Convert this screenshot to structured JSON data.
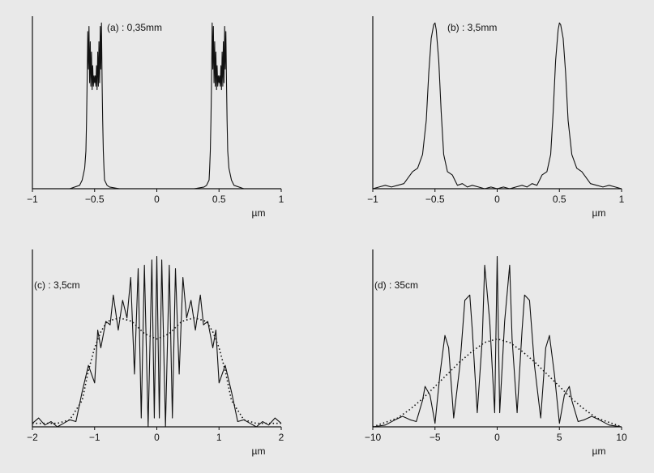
{
  "figure": {
    "background": "#e9e9e9",
    "line_color": "#111111"
  },
  "chart_data": [
    {
      "id": "a",
      "type": "line",
      "annotation": "(a) : 0,35mm",
      "xlabel": "µm",
      "xlim": [
        -1,
        1
      ],
      "ylim": [
        0,
        1
      ],
      "xticks": [
        -1,
        -0.5,
        0,
        0.5,
        1
      ],
      "xtick_labels": [
        "−1",
        "−0.5",
        "0",
        "0.5",
        "1"
      ],
      "grid": false,
      "series": [
        {
          "style": "solid",
          "x": [
            -1.0,
            -0.7,
            -0.62,
            -0.6,
            -0.58,
            -0.57,
            -0.565,
            -0.56,
            -0.555,
            -0.55,
            -0.545,
            -0.54,
            -0.535,
            -0.53,
            -0.525,
            -0.52,
            -0.515,
            -0.51,
            -0.505,
            -0.5,
            -0.495,
            -0.49,
            -0.485,
            -0.48,
            -0.475,
            -0.47,
            -0.465,
            -0.46,
            -0.455,
            -0.45,
            -0.445,
            -0.44,
            -0.435,
            -0.43,
            -0.425,
            -0.42,
            -0.4,
            -0.38,
            -0.3,
            0.0,
            0.3,
            0.38,
            0.4,
            0.42,
            0.425,
            0.43,
            0.435,
            0.44,
            0.445,
            0.45,
            0.455,
            0.46,
            0.465,
            0.47,
            0.475,
            0.48,
            0.485,
            0.49,
            0.495,
            0.5,
            0.505,
            0.51,
            0.515,
            0.52,
            0.525,
            0.53,
            0.535,
            0.54,
            0.545,
            0.55,
            0.555,
            0.56,
            0.565,
            0.57,
            0.58,
            0.6,
            0.62,
            0.7,
            1.0
          ],
          "y": [
            0.0,
            0.0,
            0.02,
            0.05,
            0.12,
            0.22,
            0.4,
            0.62,
            0.92,
            0.7,
            0.95,
            0.62,
            0.86,
            0.6,
            0.8,
            0.58,
            0.72,
            0.6,
            0.66,
            0.62,
            0.66,
            0.6,
            0.72,
            0.58,
            0.8,
            0.6,
            0.86,
            0.62,
            0.95,
            0.7,
            0.97,
            0.62,
            0.4,
            0.22,
            0.12,
            0.05,
            0.02,
            0.01,
            0.0,
            0.0,
            0.0,
            0.01,
            0.02,
            0.05,
            0.12,
            0.22,
            0.4,
            0.62,
            0.97,
            0.7,
            0.95,
            0.62,
            0.86,
            0.6,
            0.8,
            0.58,
            0.72,
            0.6,
            0.66,
            0.62,
            0.66,
            0.6,
            0.72,
            0.58,
            0.8,
            0.6,
            0.86,
            0.62,
            0.95,
            0.7,
            0.92,
            0.62,
            0.4,
            0.22,
            0.12,
            0.05,
            0.02,
            0.0,
            0.0
          ]
        }
      ]
    },
    {
      "id": "b",
      "type": "line",
      "annotation": "(b) : 3,5mm",
      "xlabel": "µm",
      "xlim": [
        -1,
        1
      ],
      "ylim": [
        0,
        1
      ],
      "xticks": [
        -1,
        -0.5,
        0,
        0.5,
        1
      ],
      "xtick_labels": [
        "−1",
        "−0.5",
        "0",
        "0.5",
        "1"
      ],
      "grid": false,
      "series": [
        {
          "style": "solid",
          "x": [
            -1.0,
            -0.95,
            -0.9,
            -0.85,
            -0.8,
            -0.75,
            -0.72,
            -0.68,
            -0.64,
            -0.6,
            -0.57,
            -0.55,
            -0.53,
            -0.51,
            -0.5,
            -0.49,
            -0.47,
            -0.45,
            -0.43,
            -0.4,
            -0.36,
            -0.32,
            -0.28,
            -0.24,
            -0.2,
            -0.15,
            -0.1,
            -0.05,
            0.0,
            0.05,
            0.1,
            0.15,
            0.2,
            0.24,
            0.28,
            0.32,
            0.36,
            0.4,
            0.43,
            0.45,
            0.47,
            0.49,
            0.5,
            0.51,
            0.53,
            0.55,
            0.57,
            0.6,
            0.64,
            0.68,
            0.72,
            0.75,
            0.8,
            0.85,
            0.9,
            0.95,
            1.0
          ],
          "y": [
            0.0,
            0.01,
            0.02,
            0.01,
            0.02,
            0.03,
            0.06,
            0.1,
            0.12,
            0.2,
            0.4,
            0.68,
            0.88,
            0.96,
            0.97,
            0.93,
            0.75,
            0.45,
            0.2,
            0.1,
            0.08,
            0.02,
            0.03,
            0.01,
            0.02,
            0.01,
            0.0,
            0.01,
            0.0,
            0.01,
            0.0,
            0.01,
            0.02,
            0.01,
            0.03,
            0.02,
            0.08,
            0.1,
            0.2,
            0.45,
            0.75,
            0.93,
            0.97,
            0.96,
            0.88,
            0.68,
            0.4,
            0.2,
            0.12,
            0.1,
            0.06,
            0.03,
            0.02,
            0.01,
            0.02,
            0.01,
            0.0
          ]
        }
      ]
    },
    {
      "id": "c",
      "type": "line",
      "annotation": "(c) : 3,5cm",
      "xlabel": "µm",
      "xlim": [
        -2,
        2
      ],
      "ylim": [
        0,
        1
      ],
      "xticks": [
        -2,
        -1,
        0,
        1,
        2
      ],
      "xtick_labels": [
        "−2",
        "−1",
        "0",
        "1",
        "2"
      ],
      "grid": false,
      "series": [
        {
          "style": "solid",
          "x": [
            -2.0,
            -1.9,
            -1.8,
            -1.7,
            -1.6,
            -1.5,
            -1.4,
            -1.3,
            -1.2,
            -1.1,
            -1.0,
            -0.95,
            -0.9,
            -0.82,
            -0.75,
            -0.7,
            -0.62,
            -0.55,
            -0.48,
            -0.42,
            -0.36,
            -0.3,
            -0.25,
            -0.2,
            -0.14,
            -0.08,
            -0.04,
            0.0,
            0.04,
            0.08,
            0.14,
            0.2,
            0.25,
            0.3,
            0.36,
            0.42,
            0.48,
            0.55,
            0.62,
            0.7,
            0.75,
            0.82,
            0.9,
            0.95,
            1.0,
            1.1,
            1.2,
            1.3,
            1.4,
            1.5,
            1.6,
            1.7,
            1.8,
            1.9,
            2.0
          ],
          "y": [
            0.02,
            0.05,
            0.01,
            0.03,
            0.0,
            0.02,
            0.04,
            0.03,
            0.2,
            0.35,
            0.25,
            0.55,
            0.45,
            0.6,
            0.58,
            0.75,
            0.55,
            0.72,
            0.62,
            0.85,
            0.3,
            0.9,
            0.05,
            0.92,
            0.0,
            0.95,
            0.05,
            0.97,
            0.05,
            0.95,
            0.0,
            0.92,
            0.05,
            0.9,
            0.3,
            0.85,
            0.62,
            0.72,
            0.55,
            0.75,
            0.58,
            0.6,
            0.45,
            0.55,
            0.25,
            0.35,
            0.2,
            0.03,
            0.04,
            0.02,
            0.0,
            0.03,
            0.01,
            0.05,
            0.02
          ]
        },
        {
          "style": "dotted",
          "x": [
            -2.0,
            -1.6,
            -1.4,
            -1.2,
            -1.1,
            -1.0,
            -0.9,
            -0.8,
            -0.6,
            -0.4,
            -0.2,
            0.0,
            0.2,
            0.4,
            0.6,
            0.8,
            0.9,
            1.0,
            1.1,
            1.2,
            1.4,
            1.6,
            2.0
          ],
          "y": [
            0.02,
            0.02,
            0.04,
            0.15,
            0.32,
            0.45,
            0.54,
            0.6,
            0.62,
            0.6,
            0.53,
            0.5,
            0.53,
            0.6,
            0.62,
            0.6,
            0.54,
            0.45,
            0.32,
            0.15,
            0.04,
            0.02,
            0.02
          ]
        }
      ]
    },
    {
      "id": "d",
      "type": "line",
      "annotation": "(d) : 35cm",
      "xlabel": "µm",
      "xlim": [
        -10,
        10
      ],
      "ylim": [
        0,
        1
      ],
      "xticks": [
        -10,
        -5,
        0,
        5,
        10
      ],
      "xtick_labels": [
        "−10",
        "−5",
        "0",
        "5",
        "10"
      ],
      "grid": false,
      "series": [
        {
          "style": "solid",
          "x": [
            -10.0,
            -9.0,
            -8.2,
            -7.6,
            -7.0,
            -6.5,
            -6.0,
            -5.8,
            -5.4,
            -5.0,
            -4.6,
            -4.2,
            -3.9,
            -3.5,
            -3.0,
            -2.6,
            -2.2,
            -2.0,
            -1.6,
            -1.2,
            -1.0,
            -0.6,
            -0.2,
            0.0,
            0.2,
            0.6,
            1.0,
            1.2,
            1.6,
            2.0,
            2.2,
            2.6,
            3.0,
            3.5,
            3.9,
            4.2,
            4.6,
            5.0,
            5.4,
            5.8,
            6.0,
            6.5,
            7.0,
            7.6,
            8.2,
            9.0,
            10.0
          ],
          "y": [
            0.0,
            0.01,
            0.04,
            0.06,
            0.04,
            0.03,
            0.15,
            0.23,
            0.18,
            0.02,
            0.3,
            0.52,
            0.45,
            0.05,
            0.35,
            0.72,
            0.75,
            0.55,
            0.08,
            0.5,
            0.92,
            0.6,
            0.08,
            0.97,
            0.08,
            0.6,
            0.92,
            0.5,
            0.08,
            0.55,
            0.75,
            0.72,
            0.35,
            0.05,
            0.45,
            0.52,
            0.3,
            0.02,
            0.18,
            0.23,
            0.15,
            0.03,
            0.04,
            0.06,
            0.04,
            0.01,
            0.0
          ]
        },
        {
          "style": "dotted",
          "x": [
            -10.0,
            -8.0,
            -7.0,
            -6.0,
            -5.0,
            -4.0,
            -3.0,
            -2.0,
            -1.0,
            0.0,
            1.0,
            2.0,
            3.0,
            4.0,
            5.0,
            6.0,
            7.0,
            8.0,
            10.0
          ],
          "y": [
            0.0,
            0.05,
            0.1,
            0.16,
            0.23,
            0.3,
            0.37,
            0.43,
            0.48,
            0.5,
            0.48,
            0.43,
            0.37,
            0.3,
            0.23,
            0.16,
            0.1,
            0.05,
            0.0
          ]
        }
      ]
    }
  ]
}
